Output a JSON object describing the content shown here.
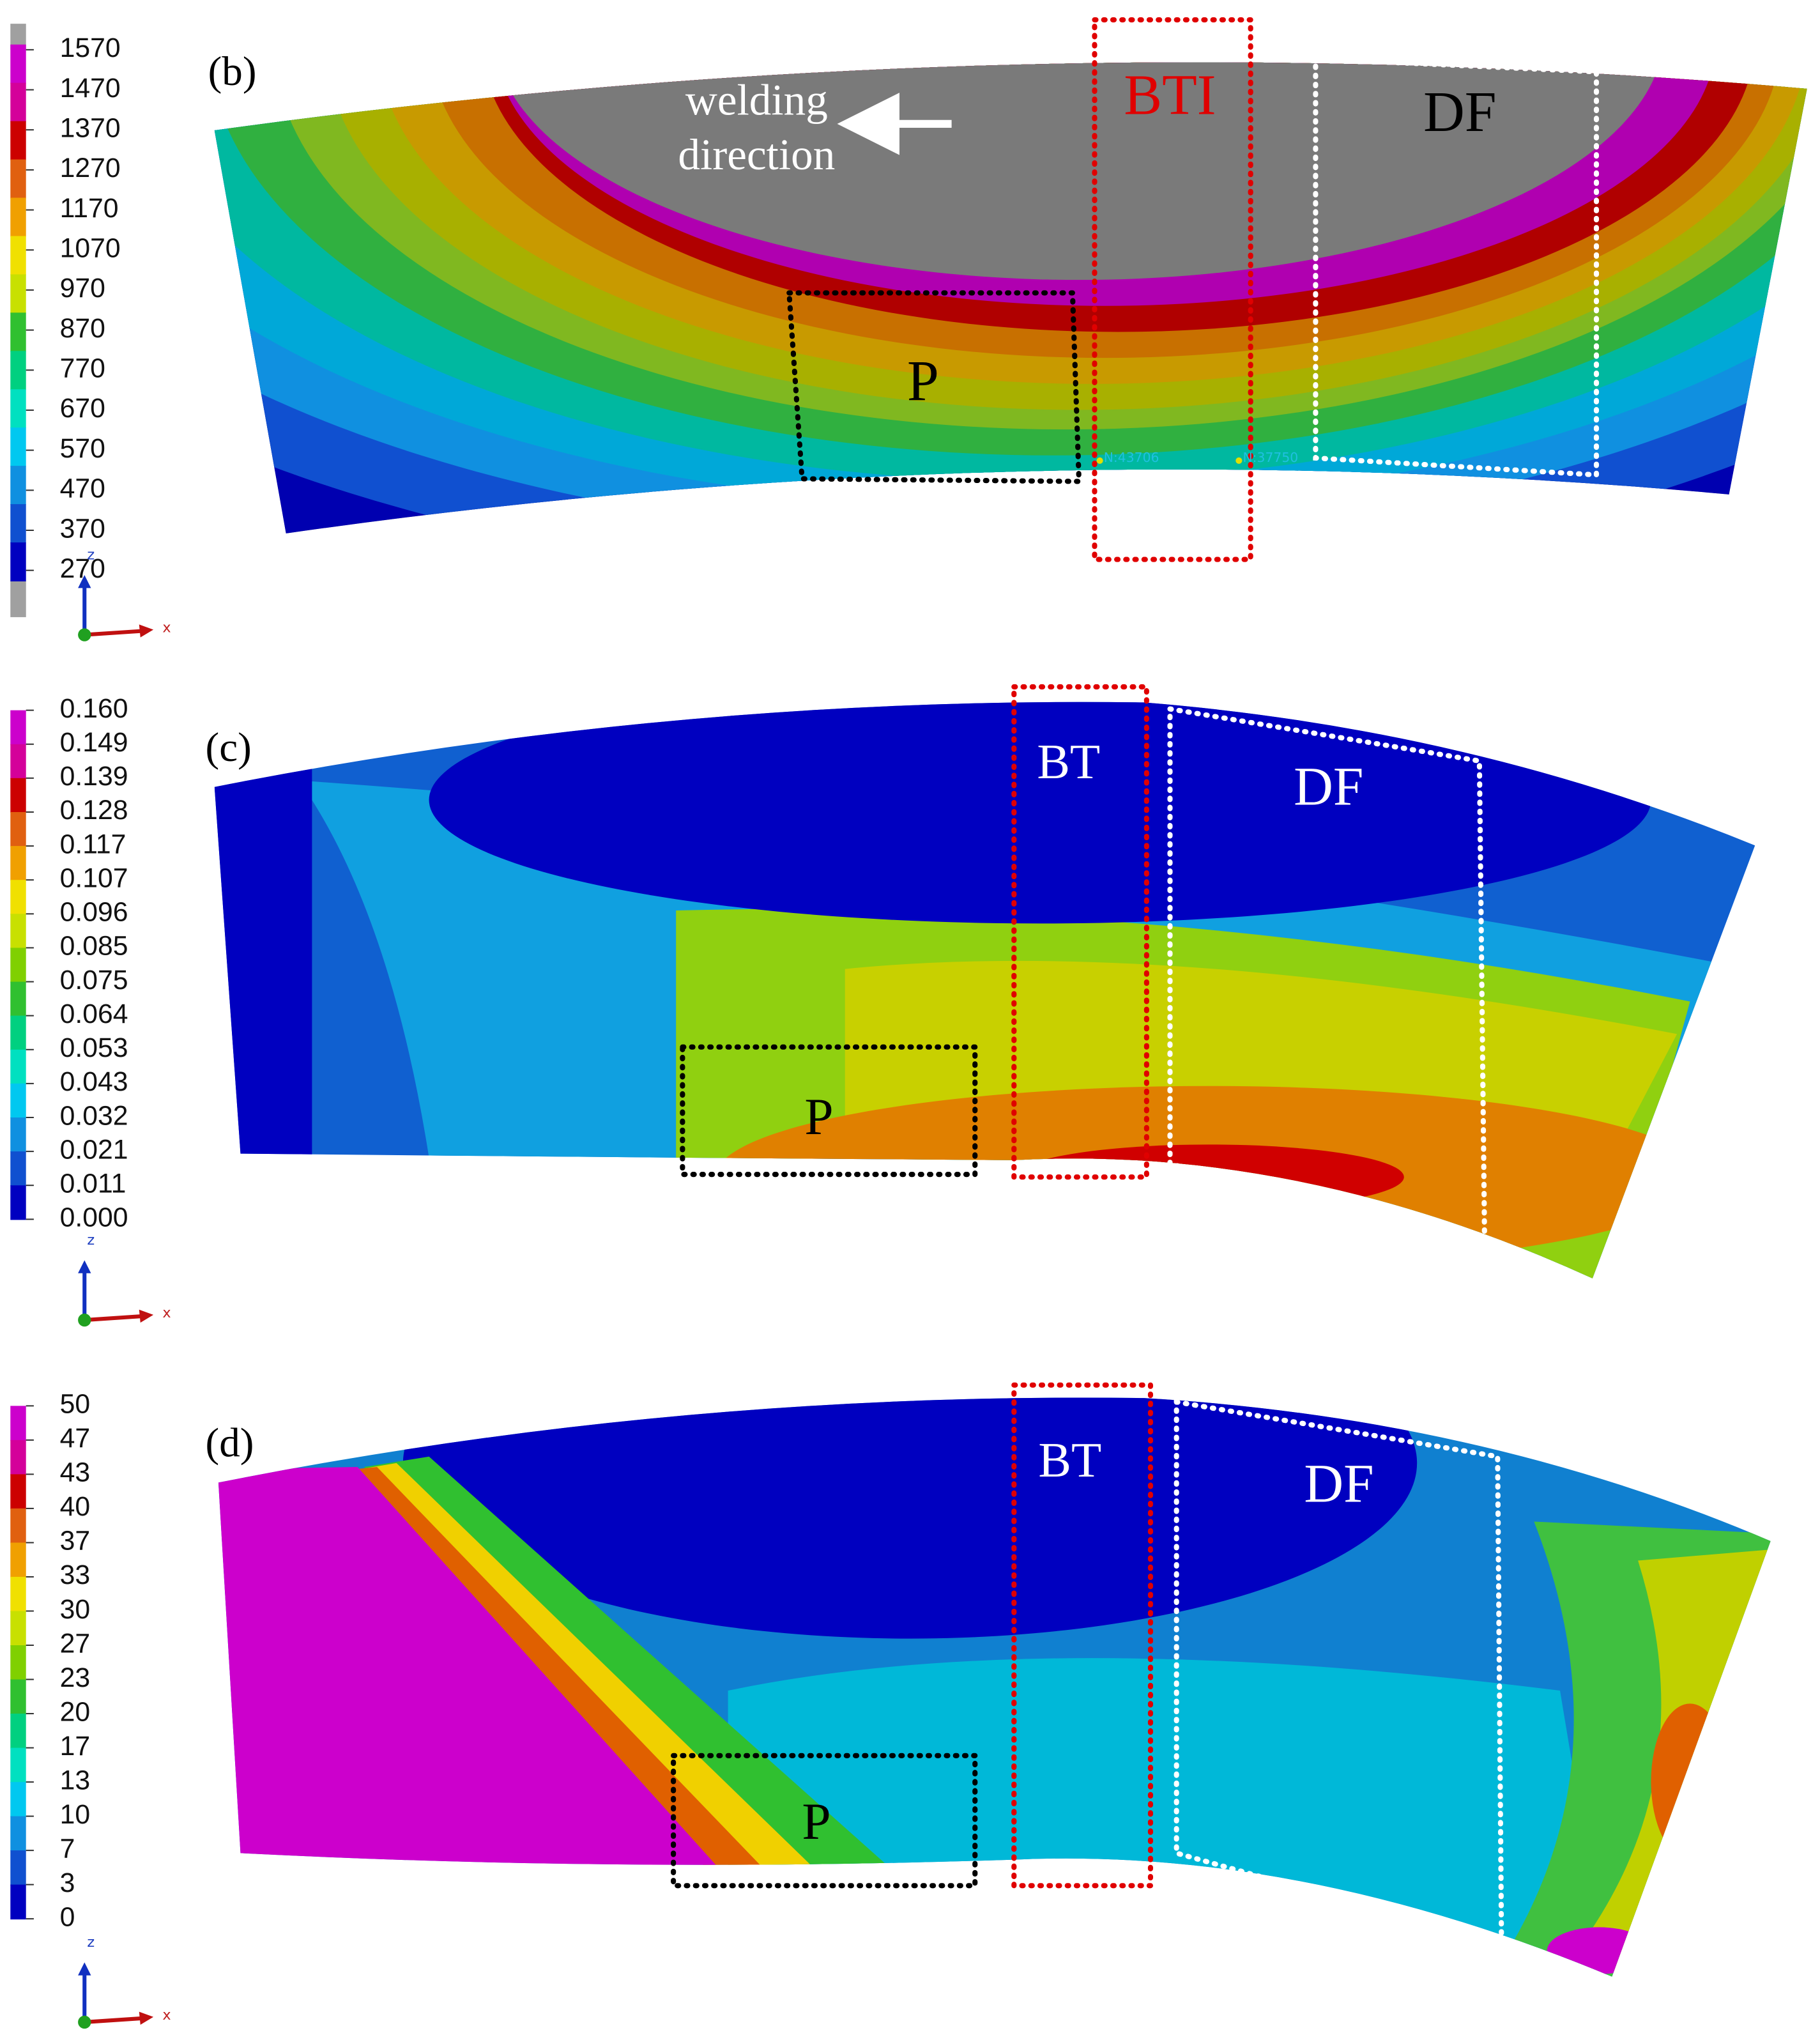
{
  "panels": [
    {
      "label": "(b)",
      "legend": [
        "1570",
        "1470",
        "1370",
        "1270",
        "1170",
        "1070",
        "970",
        "870",
        "770",
        "670",
        "570",
        "470",
        "370",
        "270"
      ],
      "direction_text": [
        "welding",
        "direction"
      ],
      "boxes": [
        "BTI",
        "DF",
        "P"
      ],
      "nodes": [
        "N:43706",
        "N:37750"
      ],
      "axes": [
        "z",
        "x"
      ]
    },
    {
      "label": "(c)",
      "legend": [
        "0.160",
        "0.149",
        "0.139",
        "0.128",
        "0.117",
        "0.107",
        "0.096",
        "0.085",
        "0.075",
        "0.064",
        "0.053",
        "0.043",
        "0.032",
        "0.021",
        "0.011",
        "0.000"
      ],
      "boxes": [
        "BT",
        "DF",
        "P"
      ],
      "axes": [
        "z",
        "x"
      ]
    },
    {
      "label": "(d)",
      "legend": [
        "50",
        "47",
        "43",
        "40",
        "37",
        "33",
        "30",
        "27",
        "23",
        "20",
        "17",
        "13",
        "10",
        "7",
        "3",
        "0"
      ],
      "boxes": [
        "BT",
        "DF",
        "P"
      ],
      "axes": [
        "z",
        "x"
      ]
    }
  ]
}
